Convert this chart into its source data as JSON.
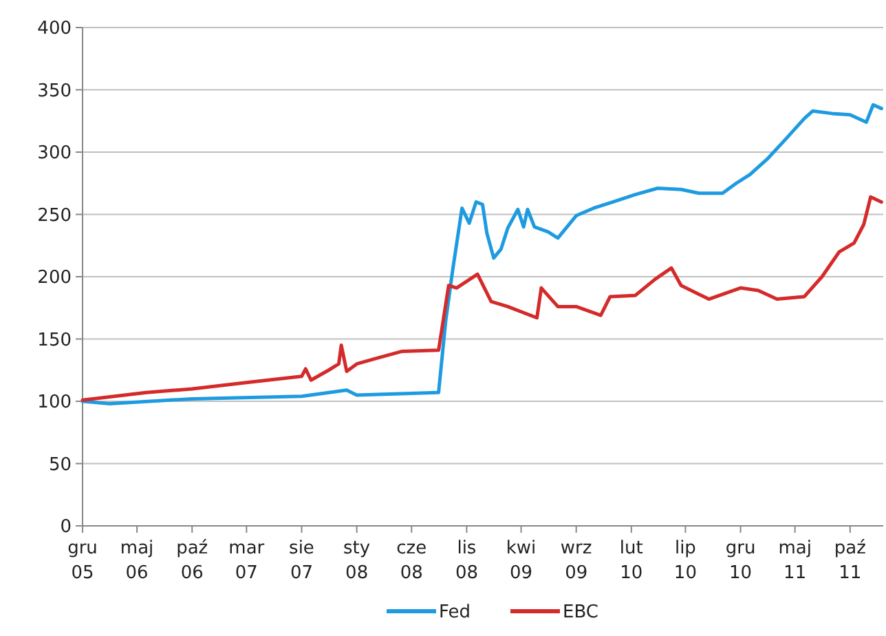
{
  "chart_data": {
    "type": "line",
    "xlim": [
      "2005-12-01",
      "2012-01-01"
    ],
    "xticks": [
      {
        "value": "2005-12-01",
        "label": "gru 05"
      },
      {
        "value": "2006-05-01",
        "label": "maj 06"
      },
      {
        "value": "2006-10-01",
        "label": "paź 06"
      },
      {
        "value": "2007-03-01",
        "label": "mar 07"
      },
      {
        "value": "2007-08-01",
        "label": "sie 07"
      },
      {
        "value": "2008-01-01",
        "label": "sty 08"
      },
      {
        "value": "2008-06-01",
        "label": "cze 08"
      },
      {
        "value": "2008-11-01",
        "label": "lis 08"
      },
      {
        "value": "2009-04-01",
        "label": "kwi 09"
      },
      {
        "value": "2009-09-01",
        "label": "wrz 09"
      },
      {
        "value": "2010-02-01",
        "label": "lut 10"
      },
      {
        "value": "2010-07-01",
        "label": "lip 10"
      },
      {
        "value": "2010-12-01",
        "label": "gru 10"
      },
      {
        "value": "2011-05-01",
        "label": "maj 11"
      },
      {
        "value": "2011-10-01",
        "label": "paź 11"
      }
    ],
    "ylim": [
      0,
      400
    ],
    "yticks": [
      0,
      50,
      100,
      150,
      200,
      250,
      300,
      350,
      400
    ],
    "grid": "y",
    "legend": "bottom",
    "marker": "none",
    "line_style": "solid",
    "series": [
      {
        "name": "Fed",
        "color": "#1e9be0",
        "x": [
          "2005-12-01",
          "2006-02-15",
          "2006-10-01",
          "2007-08-01",
          "2007-12-04",
          "2008-01-01",
          "2008-08-15",
          "2008-09-04",
          "2008-09-23",
          "2008-10-19",
          "2008-11-08",
          "2008-11-27",
          "2008-12-15",
          "2008-12-27",
          "2009-01-15",
          "2009-02-04",
          "2009-02-23",
          "2009-03-23",
          "2009-04-08",
          "2009-04-19",
          "2009-05-08",
          "2009-06-15",
          "2009-07-12",
          "2009-09-01",
          "2009-10-19",
          "2009-12-12",
          "2010-02-12",
          "2010-04-15",
          "2010-06-19",
          "2010-08-08",
          "2010-10-12",
          "2010-11-19",
          "2010-12-27",
          "2011-02-15",
          "2011-04-04",
          "2011-05-27",
          "2011-06-19",
          "2011-08-12",
          "2011-10-01",
          "2011-11-15",
          "2011-12-04",
          "2011-12-27"
        ],
        "values": [
          100,
          98,
          102,
          104,
          109,
          105,
          107,
          165,
          205,
          255,
          243,
          260,
          258,
          235,
          215,
          222,
          239,
          254,
          240,
          254,
          240,
          236,
          231,
          249,
          255,
          260,
          266,
          271,
          270,
          267,
          267,
          275,
          282,
          295,
          310,
          327,
          333,
          331,
          330,
          324,
          338,
          335
        ]
      },
      {
        "name": "EBC",
        "color": "#d42a2a",
        "x": [
          "2005-12-01",
          "2006-05-27",
          "2006-10-01",
          "2007-03-01",
          "2007-08-01",
          "2007-08-12",
          "2007-08-27",
          "2007-10-15",
          "2007-11-12",
          "2007-11-19",
          "2007-12-04",
          "2008-01-01",
          "2008-02-19",
          "2008-05-04",
          "2008-08-15",
          "2008-09-12",
          "2008-10-04",
          "2008-12-01",
          "2009-01-08",
          "2009-02-23",
          "2009-04-27",
          "2009-05-15",
          "2009-05-27",
          "2009-07-12",
          "2009-09-01",
          "2009-11-08",
          "2009-12-04",
          "2010-02-12",
          "2010-04-08",
          "2010-05-23",
          "2010-06-19",
          "2010-09-04",
          "2010-12-01",
          "2011-01-19",
          "2011-03-12",
          "2011-05-27",
          "2011-07-15",
          "2011-09-01",
          "2011-10-12",
          "2011-11-08",
          "2011-11-27",
          "2011-12-27"
        ],
        "values": [
          101,
          107,
          110,
          115,
          120,
          126,
          117,
          125,
          130,
          145,
          124,
          130,
          134,
          140,
          141,
          193,
          191,
          202,
          180,
          176,
          169,
          167,
          191,
          176,
          176,
          169,
          184,
          185,
          198,
          207,
          193,
          182,
          191,
          189,
          182,
          184,
          200,
          220,
          227,
          242,
          264,
          260
        ]
      }
    ]
  }
}
